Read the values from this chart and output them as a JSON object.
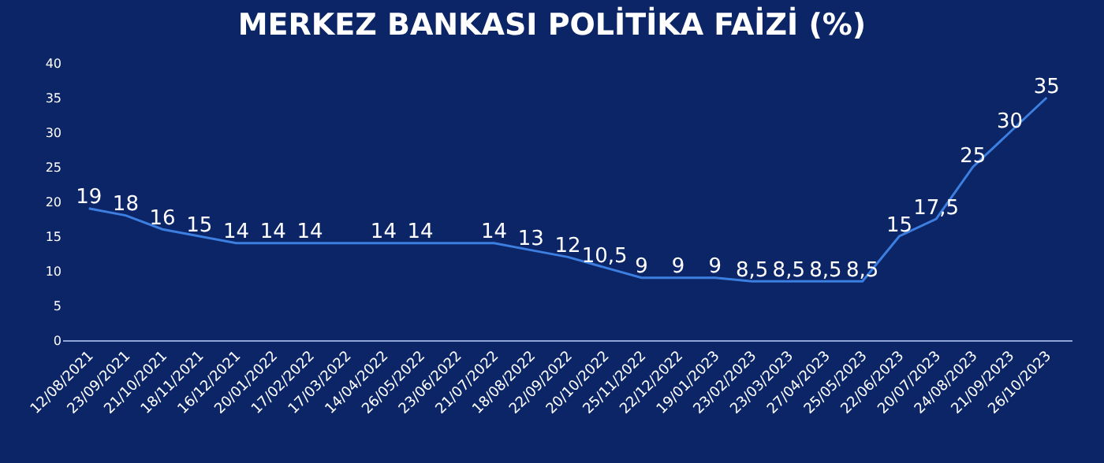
{
  "chart_data": {
    "type": "line",
    "title": "MERKEZ BANKASI POLİTİKA FAİZİ (%)",
    "categories": [
      "12/08/2021",
      "23/09/2021",
      "21/10/2021",
      "18/11/2021",
      "16/12/2021",
      "20/01/2022",
      "17/02/2022",
      "17/03/2022",
      "14/04/2022",
      "26/05/2022",
      "23/06/2022",
      "21/07/2022",
      "18/08/2022",
      "22/09/2022",
      "20/10/2022",
      "25/11/2022",
      "22/12/2022",
      "19/01/2023",
      "23/02/2023",
      "23/03/2023",
      "27/04/2023",
      "25/05/2023",
      "22/06/2023",
      "20/07/2023",
      "24/08/2023",
      "21/09/2023",
      "26/10/2023"
    ],
    "series": [
      {
        "color": "#3d7fe0",
        "values": [
          19,
          18,
          16,
          15,
          14,
          14,
          14,
          14,
          14,
          14,
          14,
          14,
          13,
          12,
          10.5,
          9,
          9,
          9,
          8.5,
          8.5,
          8.5,
          8.5,
          15,
          17.5,
          25,
          30,
          35
        ],
        "value_labels": [
          "19",
          "18",
          "16",
          "15",
          "14",
          "14",
          "14",
          null,
          "14",
          "14",
          null,
          "14",
          "13",
          "12",
          "10,5",
          "9",
          "9",
          "9",
          "8,5",
          "8,5",
          "8,5",
          "8,5",
          "15",
          "17,5",
          "25",
          "30",
          "35"
        ]
      }
    ],
    "ylim": [
      0,
      40
    ],
    "yticks": [
      0,
      5,
      10,
      15,
      20,
      25,
      30,
      35,
      40
    ],
    "grid": false,
    "legend": false,
    "marker": "none",
    "line_style": "solid"
  }
}
